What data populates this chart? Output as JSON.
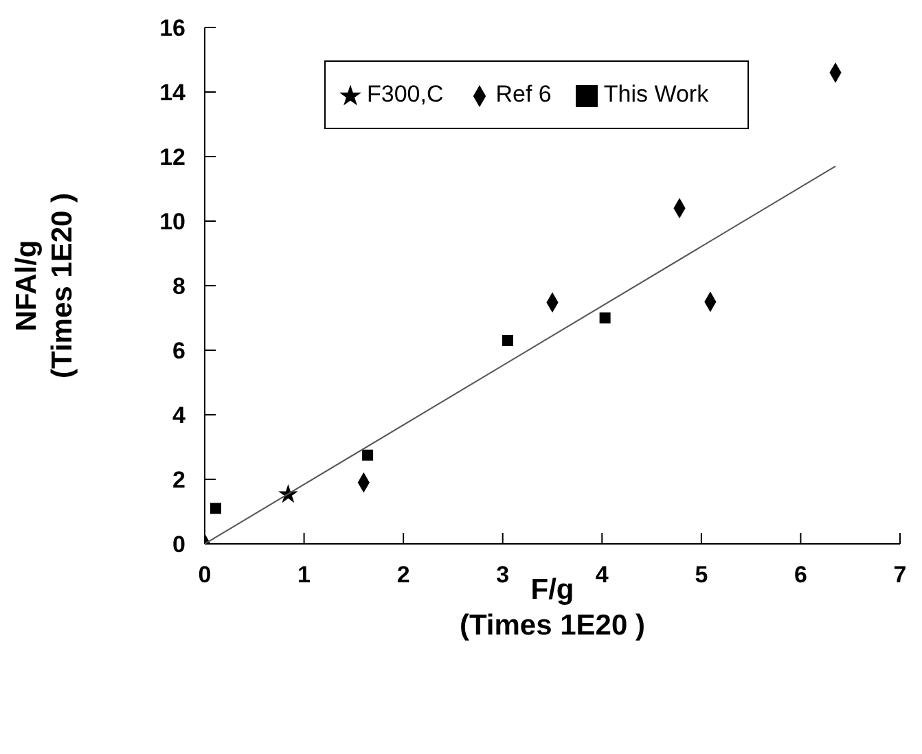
{
  "chart_data": {
    "type": "scatter",
    "xlabel": "F/g\n(Times 1E20 )",
    "ylabel": "NFAl/g\n(Times 1E20 )",
    "xlim": [
      0,
      7
    ],
    "xticks": [
      0,
      1,
      2,
      3,
      4,
      5,
      6,
      7
    ],
    "ylim": [
      0,
      16
    ],
    "yticks": [
      0,
      2,
      4,
      6,
      8,
      10,
      12,
      14,
      16
    ],
    "grid": false,
    "legend": "top",
    "series": [
      {
        "name": "This Work",
        "color": "#000000",
        "marker": "square",
        "x": [
          0.11,
          1.64,
          3.05,
          4.03
        ],
        "values": [
          1.1,
          2.75,
          6.3,
          7.0
        ]
      },
      {
        "name": "Ref 6",
        "color": "#000000",
        "marker": "diamond",
        "x": [
          0,
          1.6,
          3.5,
          4.78,
          5.09,
          6.35
        ],
        "values": [
          0,
          1.9,
          7.48,
          10.4,
          7.5,
          14.6
        ]
      },
      {
        "name": "F300,C",
        "color": "#000000",
        "marker": "star",
        "x": [
          0.84
        ],
        "values": [
          1.53
        ]
      },
      {
        "type": "line",
        "color": "#555555",
        "marker": "none",
        "line_style": "solid",
        "x": [
          0,
          6.35
        ],
        "values": [
          0,
          11.7
        ]
      }
    ]
  }
}
